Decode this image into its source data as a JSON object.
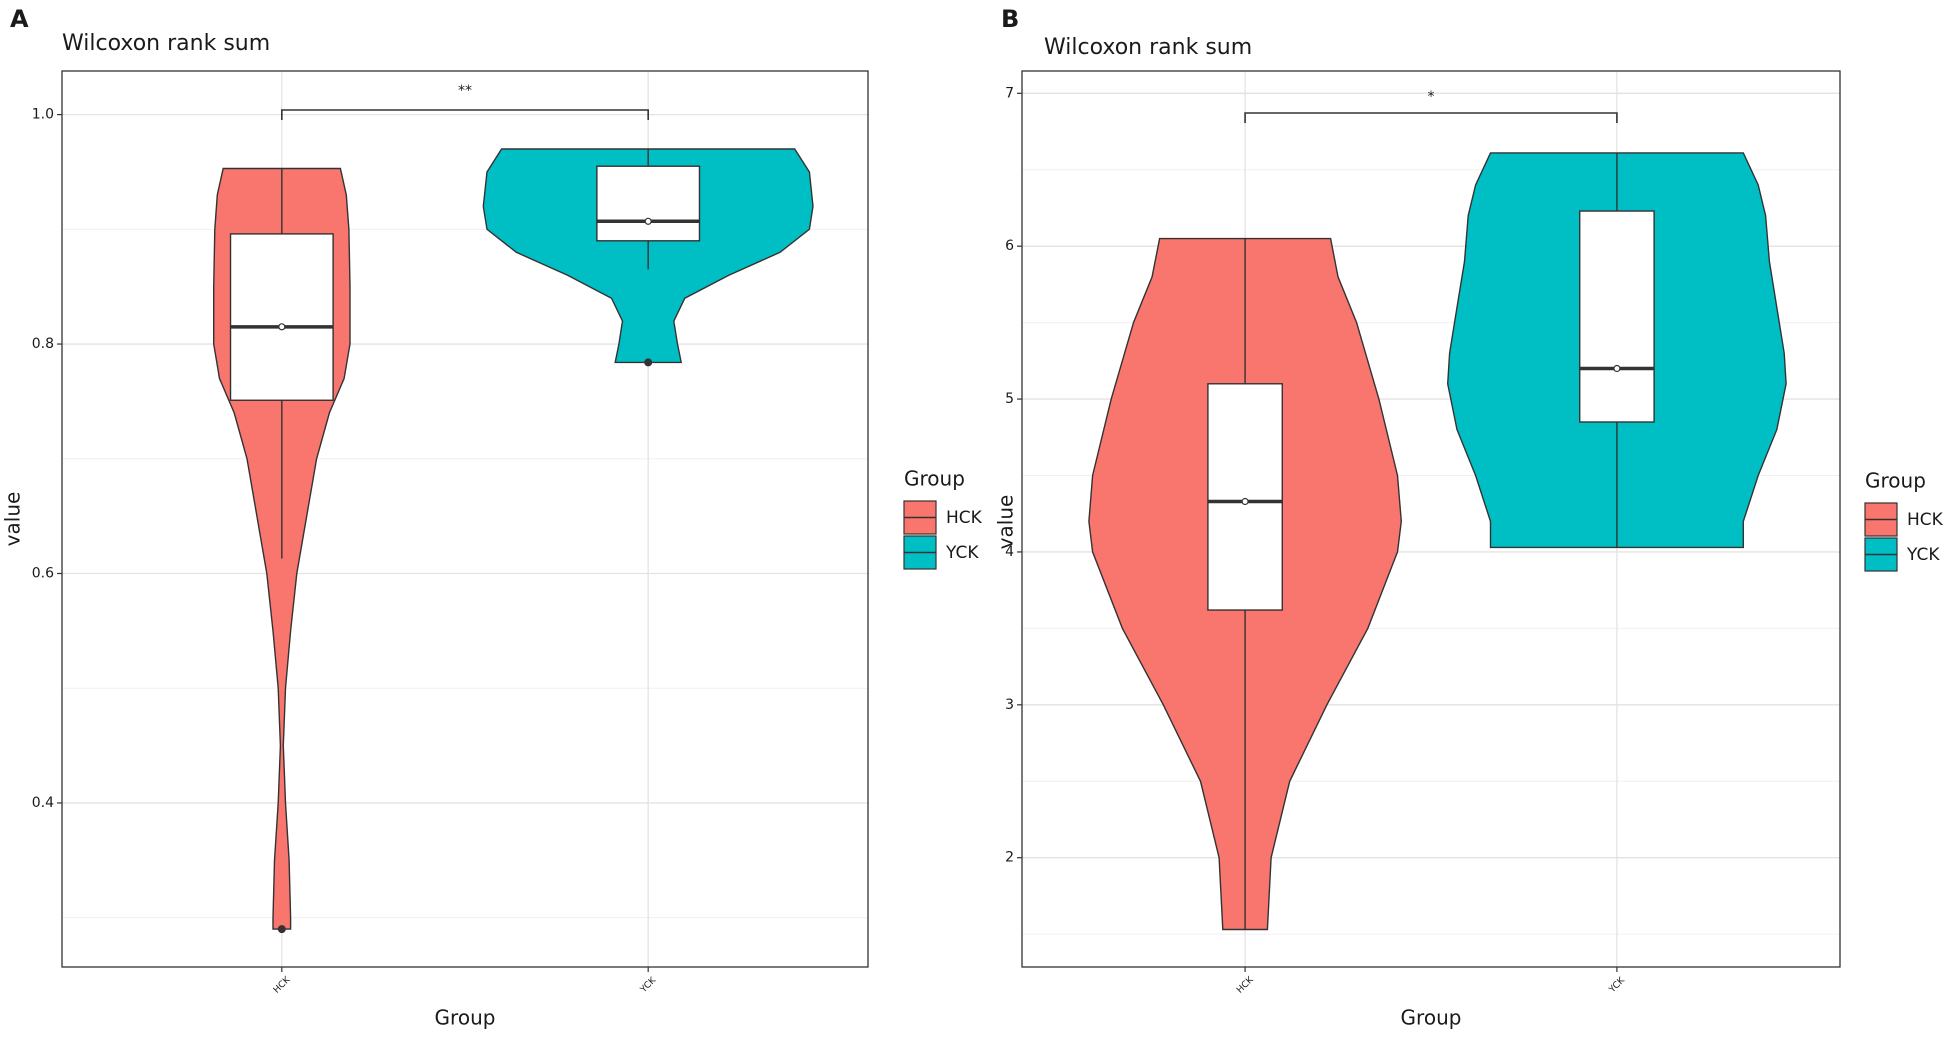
{
  "chart_data": [
    {
      "type": "violin",
      "panel_label": "A",
      "title": "Wilcoxon rank sum",
      "x_label": "Group",
      "y_label": "value",
      "categories": [
        "HCK",
        "YCK"
      ],
      "ylim": [
        0.257,
        1.038
      ],
      "yticks": [
        0.4,
        0.6,
        0.8,
        {
          "value": 1,
          "label": "1.0"
        }
      ],
      "minor_yticks": [
        0.3,
        0.5,
        0.7,
        0.9
      ],
      "grid": true,
      "legend_title": "Group",
      "significance": "**",
      "series": [
        {
          "name": "HCK",
          "color": "#f8766d",
          "box": {
            "lower_whisker": 0.613,
            "q1": 0.751,
            "median": 0.815,
            "q3": 0.896,
            "upper_whisker": 0.953,
            "mean": 0.815,
            "outliers": [
              0.29
            ]
          },
          "violin": {
            "y": [
              0.953,
              0.93,
              0.9,
              0.85,
              0.8,
              0.77,
              0.74,
              0.7,
              0.65,
              0.6,
              0.55,
              0.5,
              0.45,
              0.4,
              0.35,
              0.3,
              0.29
            ],
            "width": [
              0.16,
              0.176,
              0.183,
              0.186,
              0.186,
              0.17,
              0.13,
              0.095,
              0.068,
              0.041,
              0.024,
              0.01,
              0.004,
              0.01,
              0.02,
              0.024,
              0.024
            ]
          }
        },
        {
          "name": "YCK",
          "color": "#00bfc4",
          "box": {
            "lower_whisker": 0.865,
            "q1": 0.89,
            "median": 0.907,
            "q3": 0.955,
            "upper_whisker": 0.97,
            "mean": 0.907,
            "outliers": [
              0.784
            ]
          },
          "violin": {
            "y": [
              0.97,
              0.95,
              0.92,
              0.9,
              0.88,
              0.86,
              0.84,
              0.82,
              0.8,
              0.784
            ],
            "width": [
              0.4,
              0.44,
              0.45,
              0.44,
              0.36,
              0.22,
              0.1,
              0.07,
              0.08,
              0.09
            ]
          }
        }
      ]
    },
    {
      "type": "violin",
      "panel_label": "B",
      "title": "Wilcoxon rank sum",
      "x_label": "Group",
      "y_label": "value",
      "categories": [
        "HCK",
        "YCK"
      ],
      "ylim": [
        1.285,
        7.146
      ],
      "yticks": [
        2,
        3,
        4,
        5,
        6,
        7
      ],
      "minor_yticks": [
        1.5,
        2.5,
        3.5,
        4.5,
        5.5,
        6.5
      ],
      "grid": true,
      "legend_title": "Group",
      "significance": "*",
      "series": [
        {
          "name": "HCK",
          "color": "#f8766d",
          "box": {
            "lower_whisker": 1.53,
            "q1": 3.62,
            "median": 4.33,
            "q3": 5.1,
            "upper_whisker": 6.05,
            "mean": 4.33
          },
          "violin": {
            "y": [
              6.05,
              5.8,
              5.5,
              5.0,
              4.5,
              4.2,
              4.0,
              3.5,
              3.0,
              2.5,
              2.0,
              1.53
            ],
            "width": [
              0.23,
              0.25,
              0.3,
              0.36,
              0.41,
              0.42,
              0.41,
              0.33,
              0.22,
              0.12,
              0.07,
              0.06
            ]
          }
        },
        {
          "name": "YCK",
          "color": "#00bfc4",
          "box": {
            "lower_whisker": 4.03,
            "q1": 4.85,
            "median": 5.2,
            "q3": 6.23,
            "upper_whisker": 6.61,
            "mean": 5.2
          },
          "violin": {
            "y": [
              6.61,
              6.4,
              6.2,
              5.9,
              5.6,
              5.3,
              5.1,
              4.8,
              4.5,
              4.2,
              4.03
            ],
            "width": [
              0.34,
              0.38,
              0.4,
              0.41,
              0.43,
              0.45,
              0.455,
              0.43,
              0.38,
              0.34,
              0.34
            ]
          }
        }
      ]
    }
  ]
}
